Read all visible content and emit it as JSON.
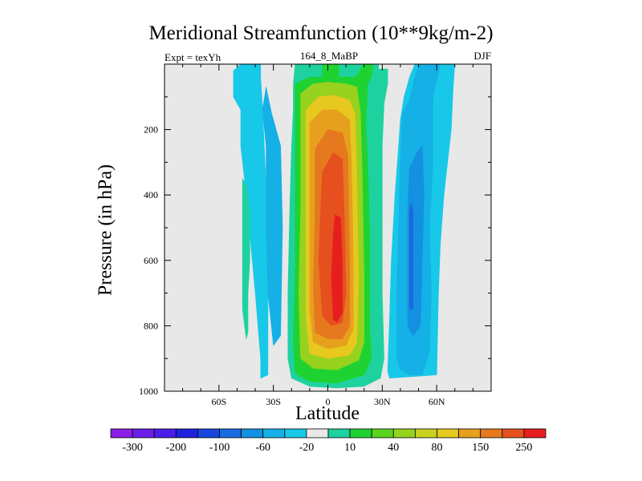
{
  "chart_data": {
    "type": "heatmap",
    "title": "Meridional Streamfunction (10**9kg/m-2)",
    "subtitle_left": "Expt = texYh",
    "subtitle_center": "164_8_MaBP",
    "subtitle_right": "DJF",
    "xlabel": "Latitude",
    "ylabel": "Pressure (in hPa)",
    "xlim": [
      -90,
      90
    ],
    "ylim": [
      1000,
      0
    ],
    "x_ticks": [
      {
        "value": -60,
        "label": "60S"
      },
      {
        "value": -30,
        "label": "30S"
      },
      {
        "value": 0,
        "label": "0"
      },
      {
        "value": 30,
        "label": "30N"
      },
      {
        "value": 60,
        "label": "60N"
      }
    ],
    "y_ticks": [
      {
        "value": 200,
        "label": "200"
      },
      {
        "value": 400,
        "label": "400"
      },
      {
        "value": 600,
        "label": "600"
      },
      {
        "value": 800,
        "label": "800"
      },
      {
        "value": 1000,
        "label": "1000"
      }
    ],
    "colorbar": {
      "colors": [
        "#8a1ee6",
        "#6a1ee8",
        "#4a1ee8",
        "#2020e0",
        "#1846dc",
        "#1a6ae0",
        "#1490e0",
        "#14b0e6",
        "#18c8e8",
        "#e8e8e8",
        "#1ed2a0",
        "#1ed232",
        "#5ad21e",
        "#96d21e",
        "#c8d21e",
        "#e6c81e",
        "#e6a01e",
        "#e6781e",
        "#e6501e",
        "#e61e1e"
      ],
      "labels": [
        "-300",
        "-200",
        "-100",
        "-60",
        "-20",
        "10",
        "40",
        "80",
        "150",
        "250"
      ]
    },
    "contour_fields": [
      {
        "level": "-20",
        "color": "#18c8e8",
        "polygons": [
          [
            [
              -48,
              -2
            ],
            [
              -37,
              -2
            ],
            [
              -37,
              40
            ],
            [
              -36,
              130
            ],
            [
              -33,
              500
            ],
            [
              -33,
              950
            ],
            [
              -37,
              960
            ],
            [
              -37,
              900
            ],
            [
              -40,
              700
            ],
            [
              -45,
              400
            ],
            [
              -48,
              250
            ],
            [
              -48,
              140
            ],
            [
              -52,
              100
            ],
            [
              -52,
              20
            ]
          ],
          [
            [
              48,
              -2
            ],
            [
              70,
              -2
            ],
            [
              69,
              80
            ],
            [
              68,
              200
            ],
            [
              64,
              400
            ],
            [
              62,
              550
            ],
            [
              61,
              700
            ],
            [
              60,
              950
            ],
            [
              48,
              955
            ],
            [
              34,
              960
            ],
            [
              33,
              940
            ],
            [
              34,
              780
            ],
            [
              35,
              600
            ],
            [
              37,
              400
            ],
            [
              39,
              250
            ],
            [
              40,
              170
            ],
            [
              42,
              100
            ],
            [
              45,
              40
            ]
          ],
          [
            [
              15,
              40
            ],
            [
              18,
              40
            ],
            [
              18,
              90
            ],
            [
              15,
              90
            ]
          ]
        ]
      },
      {
        "level": "-60",
        "color": "#14b0e6",
        "polygons": [
          [
            [
              -34,
              70
            ],
            [
              -31,
              150
            ],
            [
              -26,
              250
            ],
            [
              -25,
              500
            ],
            [
              -26,
              830
            ],
            [
              -30,
              860
            ],
            [
              -33,
              700
            ],
            [
              -34,
              500
            ],
            [
              -34,
              250
            ],
            [
              -36,
              140
            ]
          ],
          [
            [
              41,
              150
            ],
            [
              45,
              110
            ],
            [
              47,
              60
            ],
            [
              50,
              -2
            ],
            [
              62,
              -2
            ],
            [
              58,
              100
            ],
            [
              58,
              300
            ],
            [
              56,
              500
            ],
            [
              57,
              700
            ],
            [
              56,
              880
            ],
            [
              52,
              950
            ],
            [
              45,
              950
            ],
            [
              40,
              935
            ],
            [
              38,
              900
            ],
            [
              38,
              700
            ],
            [
              39,
              500
            ],
            [
              40,
              300
            ]
          ]
        ]
      },
      {
        "level": "-100",
        "color": "#1490e0",
        "polygons": [
          [
            [
              45,
              320
            ],
            [
              49,
              270
            ],
            [
              52,
              250
            ],
            [
              53,
              400
            ],
            [
              52,
              600
            ],
            [
              51,
              800
            ],
            [
              47,
              830
            ],
            [
              44,
              800
            ],
            [
              44,
              600
            ],
            [
              44,
              450
            ]
          ]
        ]
      },
      {
        "level": "-200",
        "color": "#1a6ae0",
        "polygons": [
          [
            [
              45,
              450
            ],
            [
              46,
              420
            ],
            [
              47,
              450
            ],
            [
              47,
              750
            ],
            [
              45,
              750
            ]
          ]
        ]
      },
      {
        "level": "10",
        "color": "#1ed2a0",
        "polygons": [
          [
            [
              -47,
              350
            ],
            [
              -45,
              370
            ],
            [
              -43,
              450
            ],
            [
              -43,
              600
            ],
            [
              -44,
              700
            ],
            [
              -44,
              820
            ],
            [
              -45,
              840
            ],
            [
              -47,
              750
            ],
            [
              -47,
              550
            ]
          ],
          [
            [
              -18,
              -2
            ],
            [
              -3,
              -2
            ],
            [
              -3,
              40
            ],
            [
              5,
              40
            ],
            [
              6,
              -2
            ],
            [
              28,
              -2
            ],
            [
              28,
              15
            ],
            [
              33,
              15
            ],
            [
              33,
              60
            ],
            [
              31,
              120
            ],
            [
              30,
              250
            ],
            [
              30,
              450
            ],
            [
              30,
              700
            ],
            [
              31,
              900
            ],
            [
              29,
              960
            ],
            [
              20,
              985
            ],
            [
              5,
              990
            ],
            [
              -10,
              985
            ],
            [
              -20,
              960
            ],
            [
              -22,
              900
            ],
            [
              -22,
              700
            ],
            [
              -21,
              450
            ],
            [
              -20,
              250
            ],
            [
              -19,
              140
            ],
            [
              -19,
              60
            ]
          ]
        ]
      },
      {
        "level": "40",
        "color": "#1ed232",
        "polygons": [
          [
            [
              -18,
              60
            ],
            [
              -10,
              40
            ],
            [
              -3,
              40
            ],
            [
              -3,
              0
            ],
            [
              6,
              0
            ],
            [
              6,
              40
            ],
            [
              15,
              40
            ],
            [
              20,
              -2
            ],
            [
              25,
              -2
            ],
            [
              24,
              40
            ],
            [
              22,
              60
            ],
            [
              21,
              180
            ],
            [
              22,
              300
            ],
            [
              23,
              500
            ],
            [
              23,
              800
            ],
            [
              24,
              900
            ],
            [
              20,
              950
            ],
            [
              5,
              975
            ],
            [
              -10,
              970
            ],
            [
              -18,
              945
            ],
            [
              -19,
              850
            ],
            [
              -18,
              600
            ],
            [
              -18,
              250
            ],
            [
              -18,
              120
            ]
          ]
        ]
      },
      {
        "level": "80",
        "color": "#96d21e",
        "polygons": [
          [
            [
              -15,
              90
            ],
            [
              -8,
              60
            ],
            [
              0,
              55
            ],
            [
              10,
              60
            ],
            [
              16,
              70
            ],
            [
              18,
              150
            ],
            [
              19,
              350
            ],
            [
              20,
              650
            ],
            [
              20,
              850
            ],
            [
              17,
              905
            ],
            [
              5,
              935
            ],
            [
              -8,
              930
            ],
            [
              -15,
              900
            ],
            [
              -16,
              700
            ],
            [
              -15,
              450
            ],
            [
              -15,
              200
            ]
          ]
        ]
      },
      {
        "level": "150",
        "color": "#e6c81e",
        "polygons": [
          [
            [
              -12,
              140
            ],
            [
              -5,
              100
            ],
            [
              3,
              95
            ],
            [
              12,
              110
            ],
            [
              15,
              150
            ],
            [
              16,
              350
            ],
            [
              17,
              650
            ],
            [
              16,
              850
            ],
            [
              12,
              890
            ],
            [
              0,
              900
            ],
            [
              -10,
              885
            ],
            [
              -12,
              780
            ],
            [
              -12,
              500
            ],
            [
              -12,
              250
            ]
          ]
        ]
      },
      {
        "level": "250",
        "color": "#e6a01e",
        "polygons": [
          [
            [
              -10,
              180
            ],
            [
              -3,
              140
            ],
            [
              5,
              140
            ],
            [
              12,
              170
            ],
            [
              13,
              300
            ],
            [
              14,
              600
            ],
            [
              14,
              810
            ],
            [
              10,
              860
            ],
            [
              0,
              870
            ],
            [
              -8,
              850
            ],
            [
              -10,
              750
            ],
            [
              -10,
              450
            ]
          ]
        ]
      },
      {
        "level": "",
        "color": "#e6781e",
        "polygons": [
          [
            [
              -7,
              260
            ],
            [
              0,
              200
            ],
            [
              8,
              210
            ],
            [
              11,
              280
            ],
            [
              12,
              600
            ],
            [
              12,
              800
            ],
            [
              8,
              840
            ],
            [
              0,
              840
            ],
            [
              -7,
              820
            ],
            [
              -8,
              680
            ],
            [
              -7,
              450
            ]
          ]
        ]
      },
      {
        "level": "",
        "color": "#e6501e",
        "polygons": [
          [
            [
              -3,
              330
            ],
            [
              3,
              270
            ],
            [
              8,
              290
            ],
            [
              9,
              450
            ],
            [
              10,
              700
            ],
            [
              8,
              790
            ],
            [
              2,
              800
            ],
            [
              -3,
              770
            ],
            [
              -5,
              600
            ],
            [
              -4,
              450
            ]
          ]
        ]
      },
      {
        "level": "",
        "color": "#e61e1e",
        "polygons": [
          [
            [
              4,
              460
            ],
            [
              7,
              470
            ],
            [
              8,
              600
            ],
            [
              8,
              760
            ],
            [
              5,
              790
            ],
            [
              3,
              780
            ],
            [
              2,
              650
            ],
            [
              3,
              520
            ]
          ]
        ]
      }
    ]
  }
}
